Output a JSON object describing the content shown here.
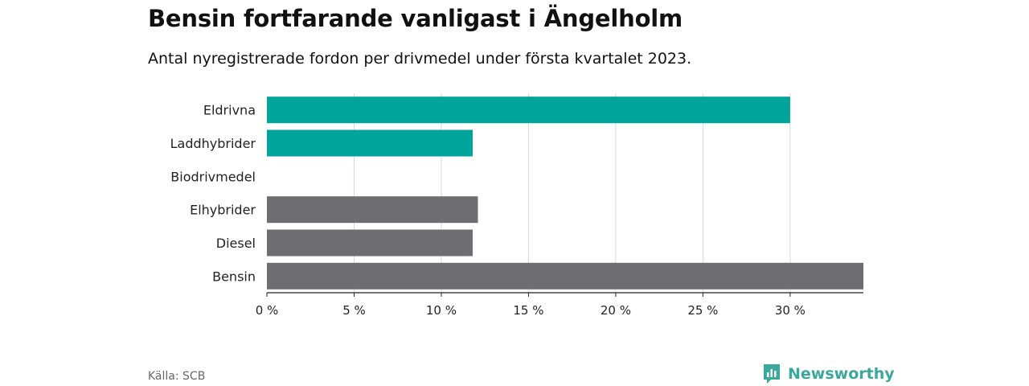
{
  "header": {
    "title": "Bensin fortfarande vanligast i Ängelholm",
    "subtitle": "Antal nyregistrerade fordon per drivmedel under första kvartalet 2023."
  },
  "footer": {
    "source": "Källa: SCB",
    "brand": "Newsworthy",
    "brand_icon": "bar-chart-speech-bubble-icon"
  },
  "colors": {
    "highlight": "#00a49a",
    "default": "#6e6d72",
    "brand": "#3aa89a",
    "grid": "#d9d9d9"
  },
  "chart_data": {
    "type": "bar",
    "orientation": "horizontal",
    "categories": [
      "Eldrivna",
      "Laddhybrider",
      "Biodrivmedel",
      "Elhybrider",
      "Diesel",
      "Bensin"
    ],
    "values": [
      30.0,
      11.8,
      0.0,
      12.1,
      11.8,
      34.2
    ],
    "highlighted": [
      true,
      true,
      false,
      false,
      false,
      false
    ],
    "x_ticks": [
      0,
      5,
      10,
      15,
      20,
      25,
      30
    ],
    "x_tick_labels": [
      "0 %",
      "5 %",
      "10 %",
      "15 %",
      "20 %",
      "25 %",
      "30 %"
    ],
    "xlim": [
      0,
      34.2
    ],
    "grid": true,
    "unit": "%"
  }
}
